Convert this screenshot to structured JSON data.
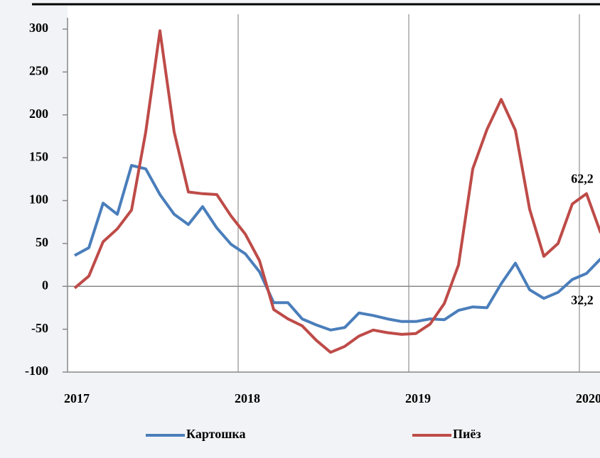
{
  "chart_data": {
    "type": "line",
    "categories": [
      "2017",
      null,
      null,
      null,
      null,
      null,
      null,
      null,
      null,
      null,
      null,
      null,
      "2018",
      null,
      null,
      null,
      null,
      null,
      null,
      null,
      null,
      null,
      null,
      null,
      "2019",
      null,
      null,
      null,
      null,
      null,
      null,
      null,
      null,
      null,
      null,
      null,
      "2020",
      null
    ],
    "series": [
      {
        "name": "Картошка",
        "color": "#4a7ebb",
        "values": [
          36,
          45,
          97,
          84,
          141,
          137,
          107,
          84,
          72,
          93,
          68,
          49,
          38,
          17,
          -19,
          -19,
          -38,
          -45,
          -51,
          -48,
          -31,
          -34,
          -38,
          -41,
          -41,
          -38,
          -39,
          -28,
          -24,
          -25,
          3,
          27,
          -4,
          -14,
          -7,
          8,
          15,
          32.2
        ],
        "value_labels": [
          null,
          null,
          null,
          null,
          null,
          null,
          null,
          null,
          null,
          null,
          null,
          null,
          null,
          null,
          null,
          null,
          null,
          null,
          null,
          null,
          null,
          null,
          null,
          null,
          null,
          null,
          null,
          null,
          null,
          null,
          null,
          null,
          null,
          null,
          null,
          null,
          null,
          "32,2"
        ]
      },
      {
        "name": "Пиёз",
        "color": "#be4b48",
        "values": [
          -2,
          12,
          52,
          67,
          89,
          180,
          298,
          180,
          110,
          108,
          107,
          82,
          61,
          30,
          -27,
          -38,
          -46,
          -63,
          -77,
          -70,
          -58,
          -51,
          -54,
          -56,
          -55,
          -44,
          -20,
          25,
          137,
          183,
          218,
          182,
          90,
          35,
          50,
          96,
          108,
          62.2
        ],
        "value_labels": [
          null,
          null,
          null,
          null,
          null,
          null,
          null,
          null,
          null,
          null,
          null,
          null,
          null,
          null,
          null,
          null,
          null,
          null,
          null,
          null,
          null,
          null,
          null,
          null,
          null,
          null,
          null,
          null,
          null,
          null,
          null,
          null,
          null,
          null,
          null,
          null,
          null,
          "62,2"
        ]
      }
    ],
    "ylim": [
      -100,
      300
    ],
    "yticks": [
      -100,
      -50,
      0,
      50,
      100,
      150,
      200,
      250,
      300
    ],
    "grid": true,
    "legend": "bottom"
  }
}
